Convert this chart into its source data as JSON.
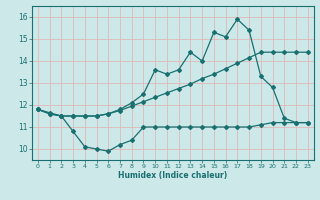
{
  "xlabel": "Humidex (Indice chaleur)",
  "xlim": [
    -0.5,
    23.5
  ],
  "ylim": [
    9.5,
    16.5
  ],
  "yticks": [
    10,
    11,
    12,
    13,
    14,
    15,
    16
  ],
  "xticks": [
    0,
    1,
    2,
    3,
    4,
    5,
    6,
    7,
    8,
    9,
    10,
    11,
    12,
    13,
    14,
    15,
    16,
    17,
    18,
    19,
    20,
    21,
    22,
    23
  ],
  "bg_color": "#cce8e8",
  "grid_color": "#aed4d4",
  "line_color": "#1a7070",
  "line1_x": [
    0,
    1,
    2,
    3,
    4,
    5,
    6,
    7,
    8,
    9,
    10,
    11,
    12,
    13,
    14,
    15,
    16,
    17,
    18,
    19,
    20,
    21,
    22,
    23
  ],
  "line1_y": [
    11.8,
    11.6,
    11.5,
    10.8,
    10.1,
    10.0,
    9.9,
    10.2,
    10.4,
    11.0,
    11.0,
    11.0,
    11.0,
    11.0,
    11.0,
    11.0,
    11.0,
    11.0,
    11.0,
    11.1,
    11.2,
    11.2,
    11.2,
    11.2
  ],
  "line2_x": [
    0,
    1,
    2,
    3,
    4,
    5,
    6,
    7,
    8,
    9,
    10,
    11,
    12,
    13,
    14,
    15,
    16,
    17,
    18,
    19,
    20,
    21,
    22,
    23
  ],
  "line2_y": [
    11.8,
    11.65,
    11.5,
    11.5,
    11.5,
    11.5,
    11.6,
    11.75,
    11.95,
    12.15,
    12.35,
    12.55,
    12.75,
    12.95,
    13.2,
    13.4,
    13.65,
    13.9,
    14.15,
    14.4,
    14.4,
    14.4,
    14.4,
    14.4
  ],
  "line3_x": [
    0,
    1,
    2,
    3,
    4,
    5,
    6,
    7,
    8,
    9,
    10,
    11,
    12,
    13,
    14,
    15,
    16,
    17,
    18,
    19,
    20,
    21,
    22,
    23
  ],
  "line3_y": [
    11.8,
    11.6,
    11.5,
    11.5,
    11.5,
    11.5,
    11.6,
    11.8,
    12.1,
    12.5,
    13.6,
    13.4,
    13.6,
    14.4,
    14.0,
    15.3,
    15.1,
    15.9,
    15.4,
    13.3,
    12.8,
    11.4,
    11.2,
    11.2
  ]
}
